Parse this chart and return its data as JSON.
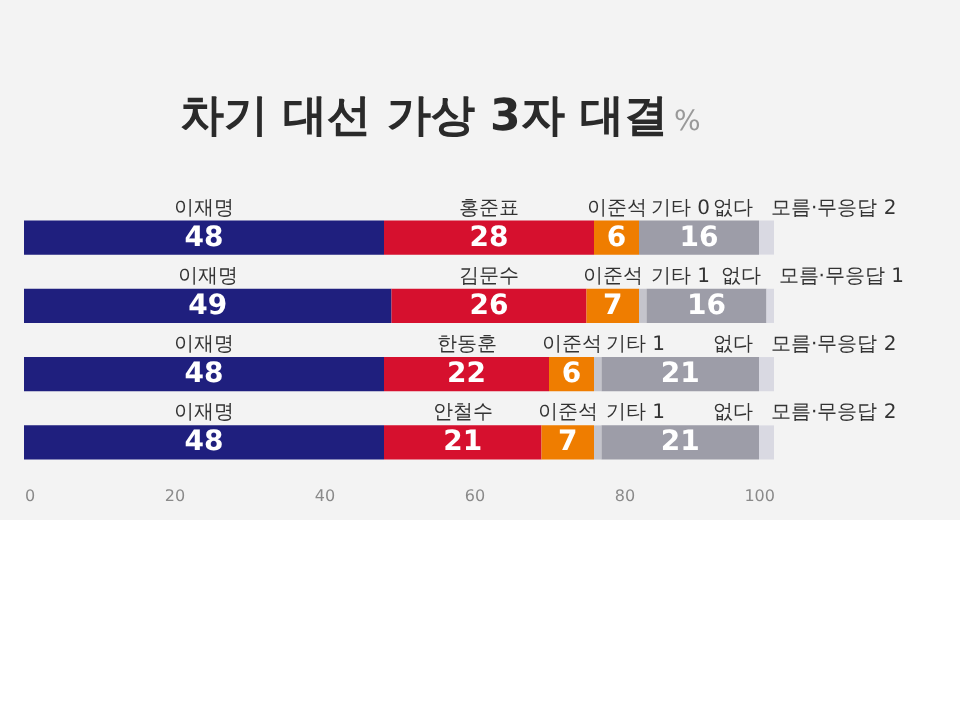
{
  "chart_data": {
    "type": "bar",
    "title": "차기 대선 가상 3자 대결",
    "subtitle": "%",
    "orientation": "horizontal",
    "stacked": true,
    "data_labels": true,
    "grid": false,
    "legend": false,
    "categories": [
      null,
      null,
      null,
      null
    ],
    "xlim": [
      0,
      100
    ],
    "xticks": [
      0,
      20,
      40,
      60,
      80,
      100
    ],
    "annotations": [
      "홍준표",
      "김문수",
      "한동훈",
      "안철수"
    ],
    "series": [
      {
        "name": "이재명",
        "color": "#1f1f7e",
        "values": [
          48,
          49,
          48,
          48
        ]
      },
      {
        "color": "#d6102e",
        "values": [
          28,
          26,
          22,
          21
        ]
      },
      {
        "name": "이준석",
        "color": "#ef7d00",
        "values": [
          6,
          7,
          6,
          7
        ]
      },
      {
        "name": "기타",
        "color": "#c4c4cc",
        "values": [
          0,
          1,
          1,
          1
        ],
        "value_labels": [
          "0",
          "1",
          "1",
          "1"
        ]
      },
      {
        "name": "없다",
        "color": "#9d9da8",
        "values": [
          16,
          16,
          21,
          21
        ]
      },
      {
        "name": "모름·무응답",
        "color": "#d9d9e2",
        "values": [
          2,
          1,
          2,
          2
        ],
        "value_labels": [
          "2",
          "1",
          "2",
          "2"
        ]
      }
    ]
  }
}
